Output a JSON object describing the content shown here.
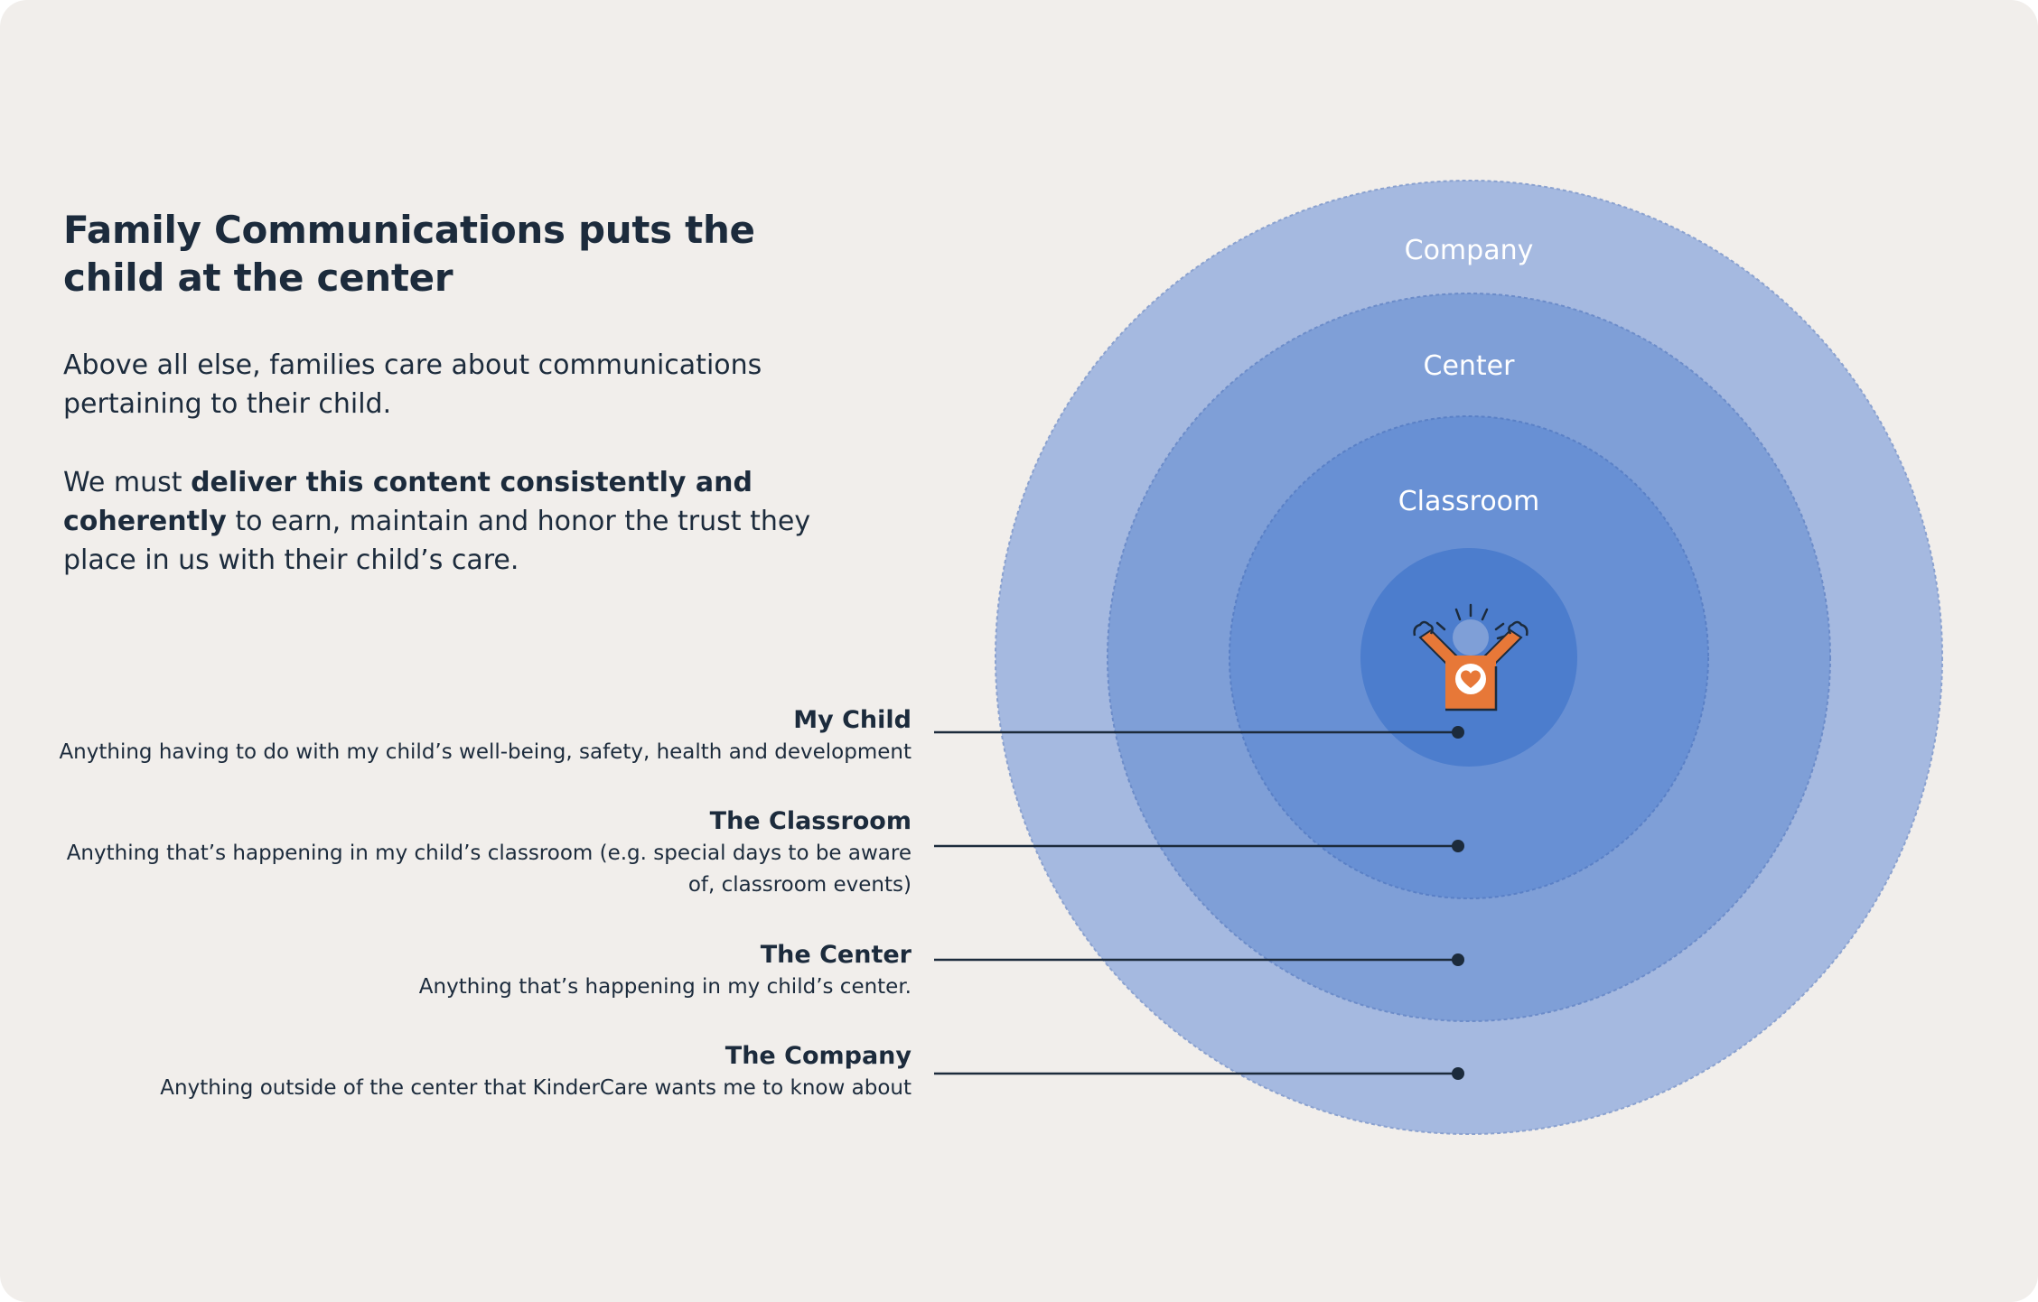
{
  "headline": {
    "line1": "Family Communications puts the",
    "line2": "child at the center"
  },
  "paragraph1": {
    "line1": "Above all else, families care about communications",
    "line2": "pertaining to their child."
  },
  "paragraph2": {
    "prefix": "We must ",
    "bold1": "deliver this content consistently and",
    "bold2": "coherently",
    "suffix1": " to earn, maintain and honor the trust they",
    "suffix2": "place in us with their child’s care."
  },
  "rings": {
    "company": "Company",
    "center": "Center",
    "classroom": "Classroom"
  },
  "legend": [
    {
      "title": "My Child",
      "desc_lines": [
        "Anything having to do with my child’s well-being, safety, health and development"
      ]
    },
    {
      "title": "The Classroom",
      "desc_lines": [
        "Anything that’s happening in my child’s classroom (e.g. special days to be aware",
        "of, classroom events)"
      ]
    },
    {
      "title": "The Center",
      "desc_lines": [
        "Anything that’s happening in my child’s center."
      ]
    },
    {
      "title": "The Company",
      "desc_lines": [
        "Anything outside of the center that KinderCare wants me to know about"
      ]
    }
  ],
  "colors": {
    "background": "#f1eeeb",
    "text": "#1c2b3c",
    "ring_company": "#a5b9e0",
    "ring_center": "#7f9fd7",
    "ring_classroom": "#6890d4",
    "ring_child": "#4c7dcd",
    "child_shirt": "#e77838",
    "leader_line": "#1c2b3c"
  },
  "icons": {
    "child": "child-with-heart-shirt-icon"
  }
}
